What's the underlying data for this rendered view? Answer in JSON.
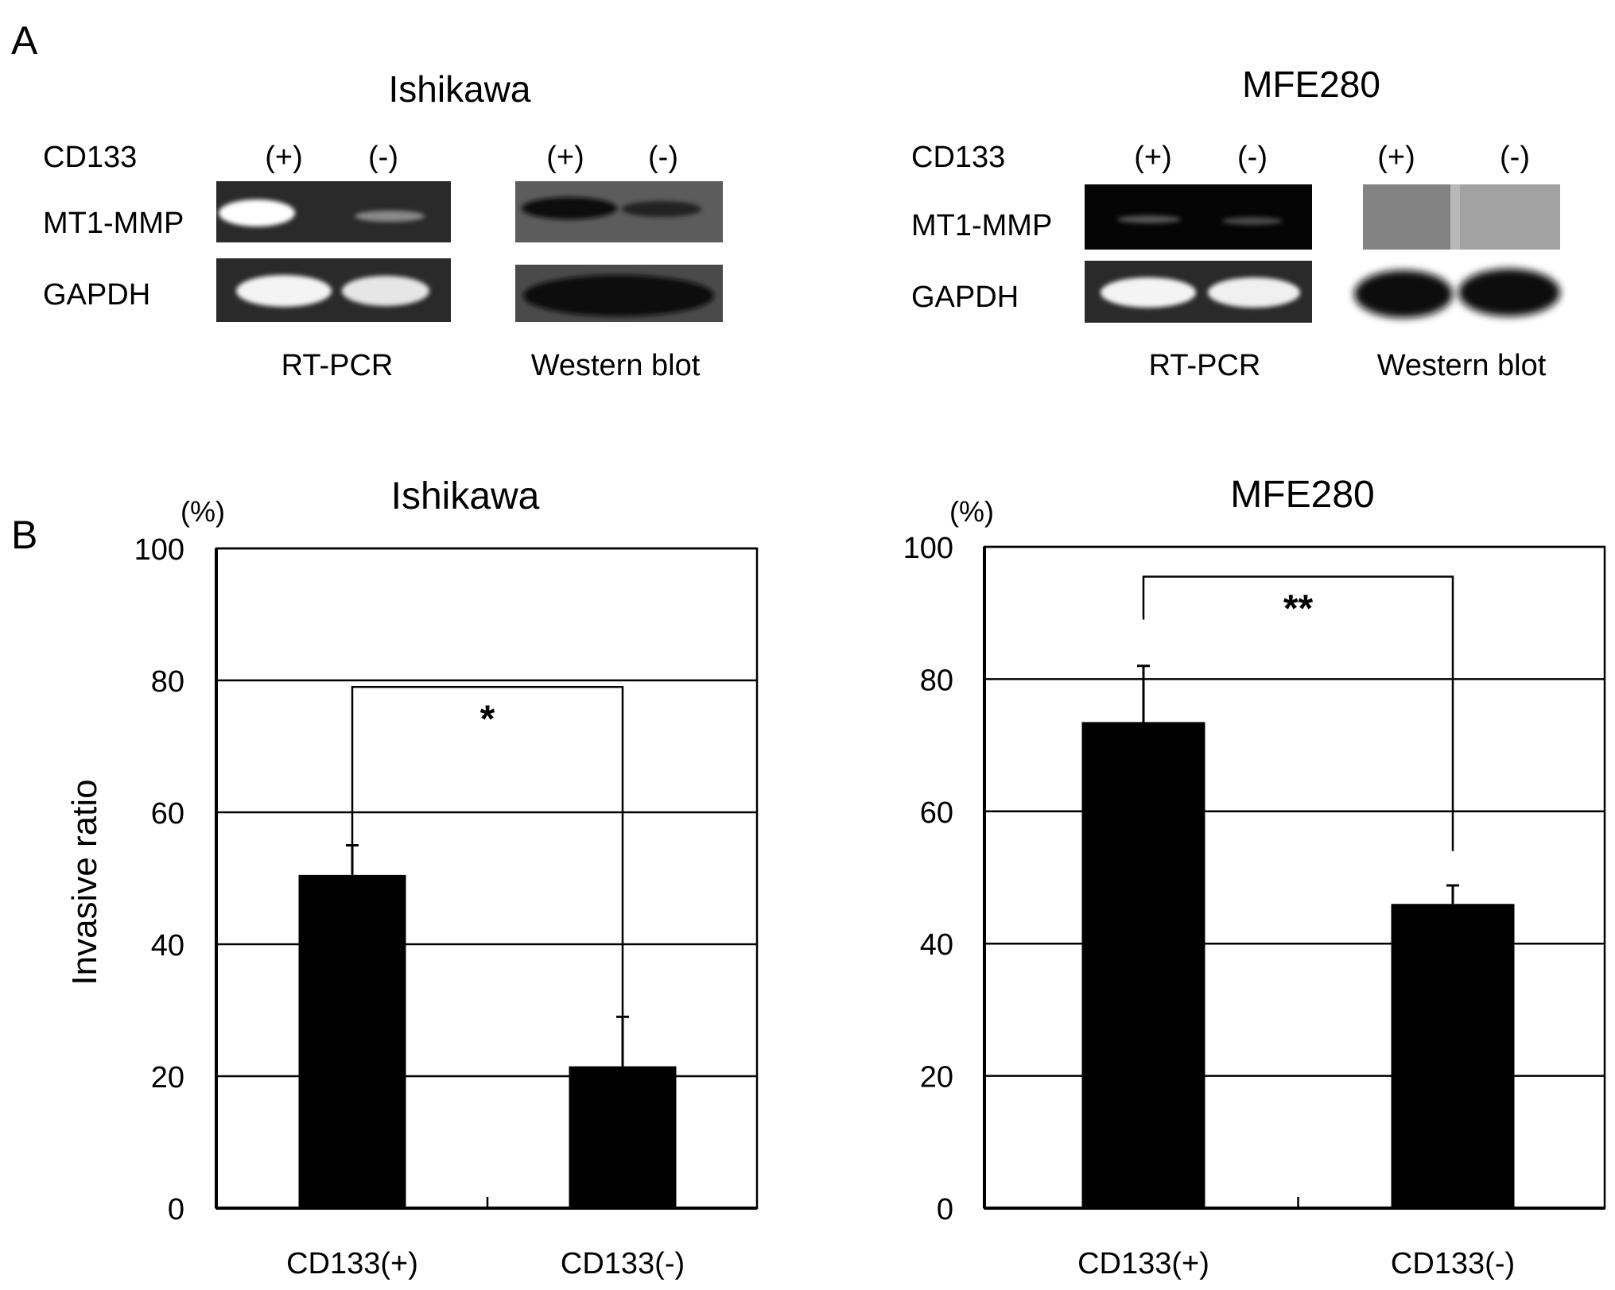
{
  "panel_a": {
    "label": "A",
    "blot_labels": {
      "marker": "CD133",
      "target": "MT1-MMP",
      "control": "GAPDH"
    },
    "lane_labels": [
      "(+)",
      "(-)"
    ],
    "method_labels": {
      "rtpcr": "RT-PCR",
      "western": "Western blot"
    },
    "cell_lines": [
      {
        "title": "Ishikawa"
      },
      {
        "title": "MFE280"
      }
    ]
  },
  "panel_b": {
    "label": "B"
  },
  "chart_data": [
    {
      "type": "bar",
      "title": "Ishikawa",
      "ylabel": "Invasive ratio",
      "yunit": "(%)",
      "ylim": [
        0,
        100
      ],
      "yticks": [
        0,
        20,
        40,
        60,
        80,
        100
      ],
      "grid": true,
      "categories": [
        "CD133(+)",
        "CD133(-)"
      ],
      "values": [
        50.5,
        21.5
      ],
      "errors": [
        4.5,
        7.5
      ],
      "significance": {
        "label": "*",
        "left_top": 54.5,
        "right_top": 29,
        "bracket_y": 79
      }
    },
    {
      "type": "bar",
      "title": "MFE280",
      "ylabel": "",
      "yunit": "(%)",
      "ylim": [
        0,
        100
      ],
      "yticks": [
        0,
        20,
        40,
        60,
        80,
        100
      ],
      "grid": true,
      "categories": [
        "CD133(+)",
        "CD133(-)"
      ],
      "values": [
        73.5,
        46
      ],
      "errors": [
        8.5,
        2.8
      ],
      "significance": {
        "label": "**",
        "left_top": 89,
        "right_top": 54,
        "bracket_y": 95.5
      }
    }
  ]
}
